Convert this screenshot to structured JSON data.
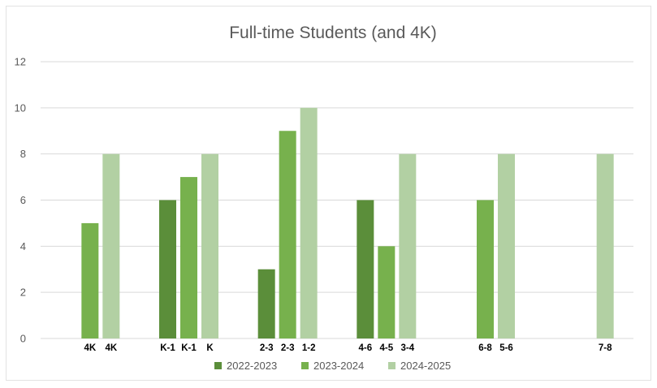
{
  "chart_data": {
    "type": "bar",
    "title": "Full-time Students (and 4K)",
    "xlabel": "",
    "ylabel": "",
    "ylim": [
      0,
      12
    ],
    "yticks": [
      0,
      2,
      4,
      6,
      8,
      10,
      12
    ],
    "grid": true,
    "legend": "bottom",
    "colors": {
      "2022-2023": "#5b8e3a",
      "2023-2024": "#77b14d",
      "2024-2025": "#b2d0a3"
    },
    "groups": [
      {
        "bars": [
          {
            "series": "2023-2024",
            "label": "4K",
            "value": 5
          },
          {
            "series": "2024-2025",
            "label": "4K",
            "value": 8
          }
        ]
      },
      {
        "bars": [
          {
            "series": "2022-2023",
            "label": "K-1",
            "value": 6
          },
          {
            "series": "2023-2024",
            "label": "K-1",
            "value": 7
          },
          {
            "series": "2024-2025",
            "label": "K",
            "value": 8
          }
        ]
      },
      {
        "bars": [
          {
            "series": "2022-2023",
            "label": "2-3",
            "value": 3
          },
          {
            "series": "2023-2024",
            "label": "2-3",
            "value": 9
          },
          {
            "series": "2024-2025",
            "label": "1-2",
            "value": 10
          }
        ]
      },
      {
        "bars": [
          {
            "series": "2022-2023",
            "label": "4-6",
            "value": 6
          },
          {
            "series": "2023-2024",
            "label": "4-5",
            "value": 4
          },
          {
            "series": "2024-2025",
            "label": "3-4",
            "value": 8
          }
        ]
      },
      {
        "bars": [
          {
            "series": "2023-2024",
            "label": "6-8",
            "value": 6
          },
          {
            "series": "2024-2025",
            "label": "5-6",
            "value": 8
          }
        ]
      },
      {
        "bars": [
          {
            "series": "2024-2025",
            "label": "7-8",
            "value": 8
          }
        ]
      }
    ],
    "series": [
      {
        "name": "2022-2023"
      },
      {
        "name": "2023-2024"
      },
      {
        "name": "2024-2025"
      }
    ]
  }
}
